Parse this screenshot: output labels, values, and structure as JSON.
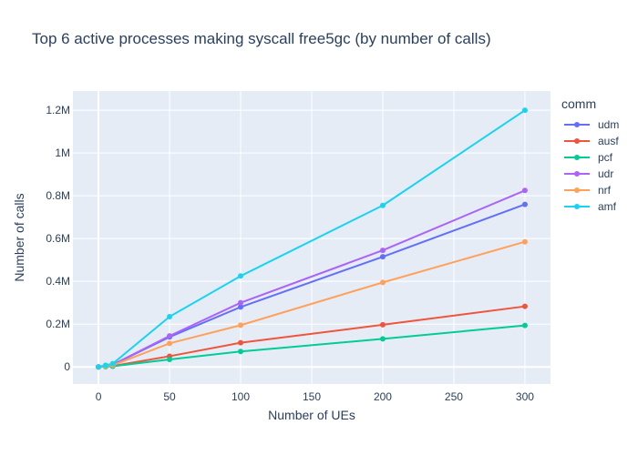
{
  "chart_data": {
    "type": "line",
    "title": "Top 6 active processes making syscall free5gc (by number of calls)",
    "xlabel": "Number of UEs",
    "ylabel": "Number of calls",
    "x": [
      0,
      5,
      10,
      50,
      100,
      200,
      300
    ],
    "xlim": [
      -18,
      318
    ],
    "ylim": [
      -80000,
      1290000
    ],
    "x_ticks": [
      0,
      50,
      100,
      150,
      200,
      250,
      300
    ],
    "x_tick_labels": [
      "0",
      "50",
      "100",
      "150",
      "200",
      "250",
      "300"
    ],
    "y_ticks": [
      0,
      200000,
      400000,
      600000,
      800000,
      1000000,
      1200000
    ],
    "y_tick_labels": [
      "0",
      "0.2M",
      "0.4M",
      "0.6M",
      "0.8M",
      "1M",
      "1.2M"
    ],
    "grid": true,
    "legend_title": "comm",
    "legend_position": "right",
    "series": [
      {
        "name": "udm",
        "color": "#636efa",
        "values": [
          0,
          5000,
          10000,
          140000,
          280000,
          515000,
          760000
        ]
      },
      {
        "name": "ausf",
        "color": "#ef553b",
        "values": [
          0,
          2000,
          4000,
          50000,
          113000,
          197000,
          283000
        ]
      },
      {
        "name": "pcf",
        "color": "#00cc96",
        "values": [
          0,
          1500,
          3000,
          35000,
          72000,
          131000,
          194000
        ]
      },
      {
        "name": "udr",
        "color": "#ab63fa",
        "values": [
          0,
          5000,
          10000,
          145000,
          300000,
          545000,
          825000
        ]
      },
      {
        "name": "nrf",
        "color": "#ffa15a",
        "values": [
          0,
          4000,
          8000,
          110000,
          195000,
          395000,
          585000
        ]
      },
      {
        "name": "amf",
        "color": "#19d3f3",
        "values": [
          0,
          8000,
          15000,
          235000,
          425000,
          755000,
          1200000
        ]
      }
    ]
  }
}
